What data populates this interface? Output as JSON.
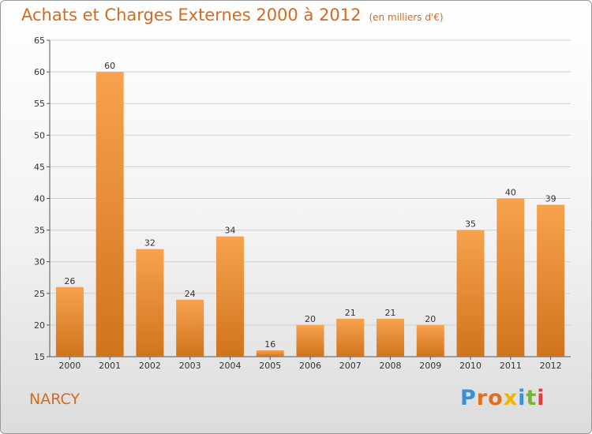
{
  "header": {
    "title": "Achats et Charges Externes 2000 à 2012",
    "subtitle": "(en milliers d'€)"
  },
  "footer": {
    "commune": "NARCY",
    "logo_text": "Proxiti"
  },
  "colors": {
    "accent": "#d46a20",
    "bar_top": "#f7a24e",
    "bar_bottom": "#d0741c"
  },
  "chart_data": {
    "type": "bar",
    "categories": [
      "2000",
      "2001",
      "2002",
      "2003",
      "2004",
      "2005",
      "2006",
      "2007",
      "2008",
      "2009",
      "2010",
      "2011",
      "2012"
    ],
    "values": [
      26,
      60,
      32,
      24,
      34,
      16,
      20,
      21,
      21,
      20,
      35,
      40,
      39
    ],
    "title": "Achats et Charges Externes 2000 à 2012",
    "ylim": [
      15,
      65
    ],
    "yticks": [
      15,
      20,
      25,
      30,
      35,
      40,
      45,
      50,
      55,
      60,
      65
    ],
    "grid": true,
    "data_labels": true
  }
}
